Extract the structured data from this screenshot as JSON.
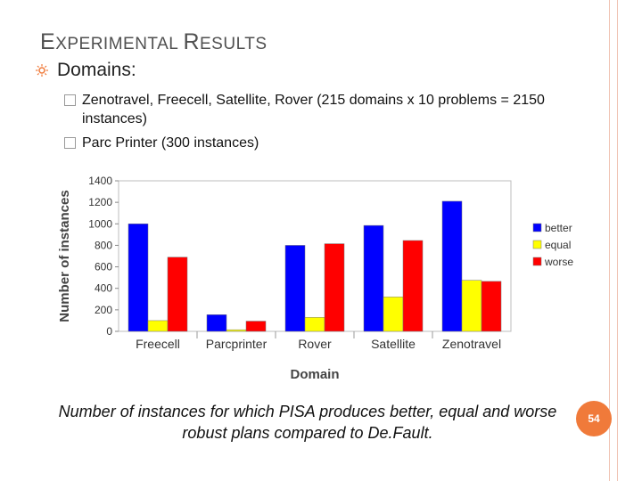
{
  "slide": {
    "title_first": "E",
    "title_rest1": "XPERIMENTAL ",
    "title_second": "R",
    "title_rest2": "ESULTS",
    "bullet": "Domains:",
    "sub_bullets": [
      "Zenotravel, Freecell, Satellite, Rover (215 domains x 10 problems = 2150 instances)",
      "Parc Printer (300 instances)"
    ],
    "caption": "Number of instances for which PISA produces better, equal and worse robust plans compared to De.Fault.",
    "page_number": "54"
  },
  "colors": {
    "accent": "#f07a3a",
    "rule": "#f0c4b4",
    "better": "#0000ff",
    "equal": "#ffff00",
    "worse": "#ff0000"
  },
  "chart_data": {
    "type": "bar",
    "categories": [
      "Freecell",
      "Parcprinter",
      "Rover",
      "Satellite",
      "Zenotravel"
    ],
    "series": [
      {
        "name": "better",
        "values": [
          1000,
          155,
          800,
          985,
          1210
        ]
      },
      {
        "name": "equal",
        "values": [
          100,
          15,
          130,
          320,
          475
        ]
      },
      {
        "name": "worse",
        "values": [
          690,
          95,
          815,
          845,
          465
        ]
      }
    ],
    "xlabel": "Domain",
    "ylabel": "Number of instances",
    "ylim": [
      0,
      1400
    ],
    "yticks": [
      0,
      200,
      400,
      600,
      800,
      1000,
      1200,
      1400
    ],
    "grid": false,
    "legend": "right"
  }
}
